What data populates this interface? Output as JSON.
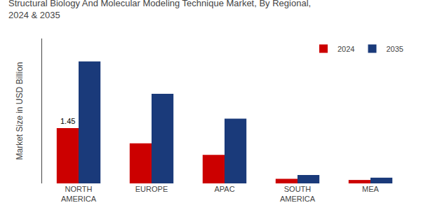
{
  "chart_data": {
    "type": "bar",
    "title": "Structural Biology And Molecular Modeling Technique Market, By Regional,\n2024 & 2035",
    "ylabel": "Market Size in USD Billion",
    "categories": [
      "NORTH\nAMERICA",
      "EUROPE",
      "APAC",
      "SOUTH\nAMERICA",
      "MEA"
    ],
    "series": [
      {
        "name": "2024",
        "color": "#cc0000",
        "values": [
          1.45,
          1.05,
          0.75,
          0.12,
          0.09
        ]
      },
      {
        "name": "2035",
        "color": "#1a3a7a",
        "values": [
          3.2,
          2.35,
          1.7,
          0.22,
          0.15
        ]
      }
    ],
    "annotations": [
      {
        "text": "1.45",
        "category": "NORTH\nAMERICA",
        "series": "2024",
        "y": 1.45
      }
    ],
    "ylim": [
      0,
      3.8
    ],
    "yticks": [],
    "tick_labels": "x",
    "grid": false,
    "legend": "upper right"
  }
}
